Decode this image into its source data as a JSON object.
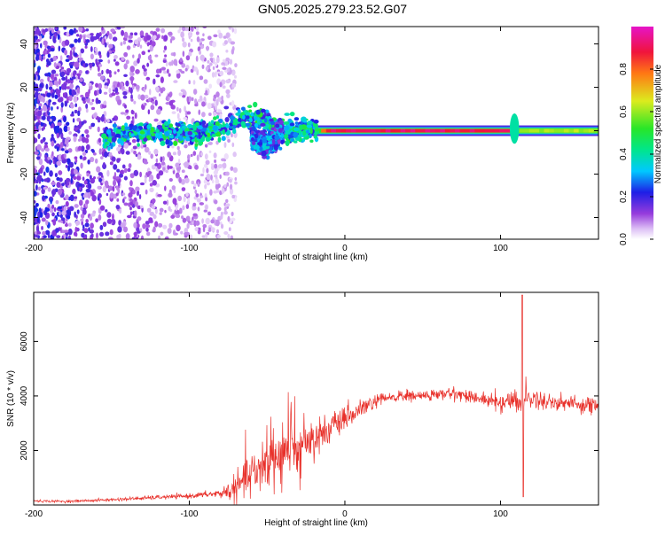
{
  "figure_title": "GN05.2025.279.23.52.G07",
  "chart_data": [
    {
      "type": "heatmap",
      "title": "",
      "xlabel": "Height of straight line (km)",
      "ylabel": "Frequency (Hz)",
      "xlim": [
        -200,
        163
      ],
      "ylim": [
        -50,
        48
      ],
      "x_ticks": [
        -200,
        -100,
        0,
        100
      ],
      "y_ticks": [
        -40,
        -20,
        0,
        20,
        40
      ],
      "grid": false,
      "colormap": "rainbow (white-purple-blue-cyan-green-yellow-red-magenta)",
      "colorbar": {
        "label": "Normalized spectral amplitude",
        "range": [
          0,
          1
        ],
        "ticks": [
          "0.0",
          "0.2",
          "0.4",
          "0.6",
          "0.8"
        ]
      },
      "features": [
        {
          "description": "scattered noise",
          "x_range": [
            -200,
            -70
          ],
          "frequency_range": [
            -50,
            48
          ],
          "amplitude": 0.15
        },
        {
          "description": "wandering carrier",
          "x": [
            -155,
            -140,
            -120,
            -100,
            -85,
            -70,
            -58,
            -48,
            -40,
            -32
          ],
          "frequency": [
            -4,
            -1,
            -1,
            -2,
            0,
            4,
            7,
            4,
            0,
            -1
          ],
          "amplitude": 0.35
        },
        {
          "description": "secondary branch",
          "x": [
            -60,
            -55,
            -50,
            -45,
            -40
          ],
          "frequency": [
            -2,
            -5,
            -7,
            -4,
            -1
          ],
          "amplitude": 0.25
        },
        {
          "description": "steady carrier",
          "x_range": [
            -28,
            163
          ],
          "frequency": 0,
          "amplitude": 0.95
        },
        {
          "description": "carrier disturbance",
          "x_range": [
            106,
            112
          ],
          "frequency_range": [
            -6,
            8
          ],
          "amplitude": 0.4
        }
      ]
    },
    {
      "type": "line",
      "title": "",
      "xlabel": "Height of straight line (km)",
      "ylabel": "SNR (10 * v/v)",
      "xlim": [
        -200,
        163
      ],
      "ylim": [
        0,
        7800
      ],
      "x_ticks": [
        -200,
        -100,
        0,
        100
      ],
      "y_ticks": [
        2000,
        4000,
        6000
      ],
      "grid": false,
      "series": [
        {
          "color": "#e8302a",
          "x": [
            -200,
            -180,
            -160,
            -140,
            -120,
            -100,
            -90,
            -80,
            -70,
            -60,
            -50,
            -40,
            -30,
            -20,
            -10,
            0,
            10,
            20,
            30,
            40,
            50,
            60,
            70,
            80,
            90,
            100,
            105,
            110,
            113,
            116,
            120,
            130,
            140,
            150,
            163
          ],
          "y": [
            150,
            130,
            170,
            220,
            280,
            330,
            380,
            420,
            600,
            1100,
            1600,
            1900,
            2150,
            2450,
            2800,
            3100,
            3500,
            3800,
            3950,
            4000,
            4000,
            4050,
            4100,
            4000,
            3850,
            3750,
            3800,
            3900,
            3700,
            4000,
            3900,
            3800,
            3750,
            3700,
            3650
          ],
          "noise_amplitude": [
            40,
            40,
            50,
            60,
            70,
            80,
            100,
            150,
            500,
            800,
            1100,
            1200,
            900,
            700,
            500,
            400,
            300,
            250,
            200,
            200,
            200,
            200,
            200,
            200,
            250,
            300,
            350,
            400,
            400,
            350,
            300,
            300,
            300,
            300,
            300
          ]
        }
      ],
      "annotations": [
        {
          "x": 114,
          "y_max": 7700,
          "y_min": 300,
          "description": "sharp spike"
        }
      ]
    }
  ]
}
